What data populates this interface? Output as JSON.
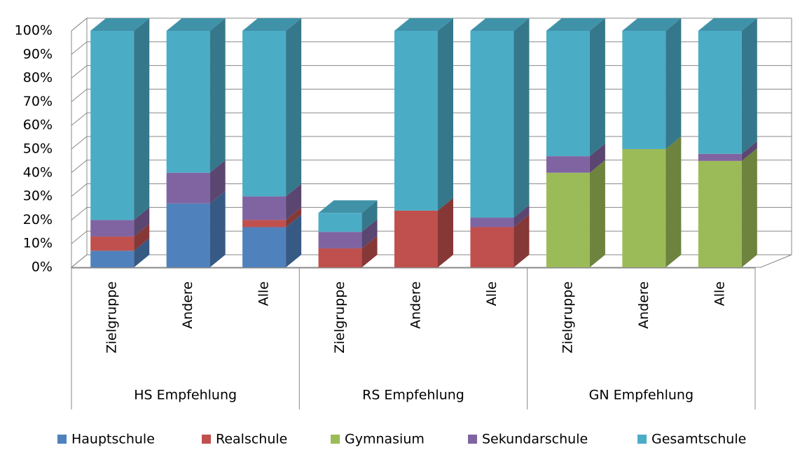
{
  "chart_data": {
    "type": "bar3d_stacked",
    "categories": [
      "Zielgruppe",
      "Andere",
      "Alle",
      "Zielgruppe",
      "Andere",
      "Alle",
      "Zielgruppe",
      "Andere",
      "Alle"
    ],
    "groups": [
      "HS Empfehlung",
      "RS Empfehlung",
      "GN Empfehlung"
    ],
    "series": [
      {
        "name": "Hauptschule",
        "color": "#4f81bd",
        "values": [
          7,
          27,
          17,
          0,
          0,
          0,
          0,
          0,
          0
        ]
      },
      {
        "name": "Realschule",
        "color": "#c0504d",
        "values": [
          6,
          0,
          3,
          8,
          24,
          17,
          0,
          0,
          0
        ]
      },
      {
        "name": "Gymnasium",
        "color": "#9bbb59",
        "values": [
          0,
          0,
          0,
          0,
          0,
          0,
          40,
          50,
          45
        ]
      },
      {
        "name": "Sekundarschule",
        "color": "#8064a2",
        "values": [
          7,
          13,
          10,
          7,
          0,
          4,
          7,
          0,
          3
        ]
      },
      {
        "name": "Gesamtschule",
        "color": "#4bacc6",
        "values": [
          80,
          60,
          70,
          8,
          76,
          79,
          53,
          50,
          52
        ]
      }
    ],
    "ylim": [
      0,
      100
    ],
    "yticks": [
      {
        "value": 0,
        "label": "0%"
      },
      {
        "value": 10,
        "label": "10%"
      },
      {
        "value": 20,
        "label": "20%"
      },
      {
        "value": 30,
        "label": "30%"
      },
      {
        "value": 40,
        "label": "40%"
      },
      {
        "value": 50,
        "label": "50%"
      },
      {
        "value": 60,
        "label": "60%"
      },
      {
        "value": 70,
        "label": "70%"
      },
      {
        "value": 80,
        "label": "80%"
      },
      {
        "value": 90,
        "label": "90%"
      },
      {
        "value": 100,
        "label": "100%"
      }
    ],
    "grid": true
  }
}
